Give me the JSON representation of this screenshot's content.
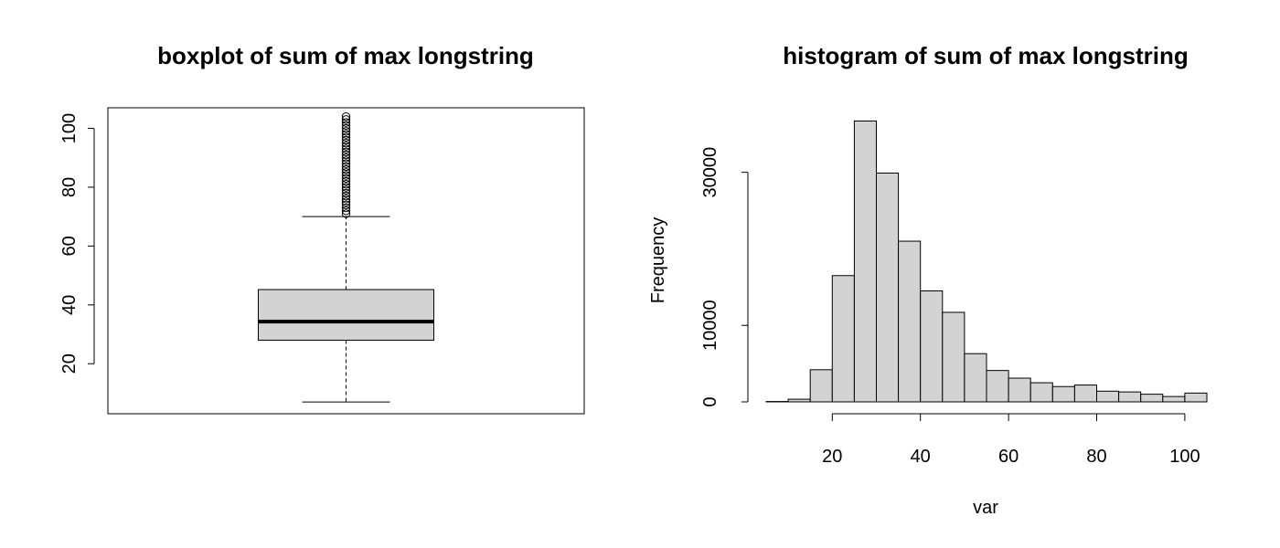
{
  "chart_data": [
    {
      "type": "box",
      "title": "boxplot of sum of max longstring",
      "ylim": [
        3,
        107
      ],
      "yticks": [
        20,
        40,
        60,
        80,
        100
      ],
      "box": {
        "whisker_low": 7,
        "q1": 28,
        "median": 34.3,
        "q3": 45.2,
        "whisker_high": 70
      },
      "outliers": [
        71,
        72,
        73,
        74,
        75,
        76,
        77,
        78,
        79,
        80,
        81,
        82,
        83,
        84,
        85,
        86,
        87,
        88,
        89,
        90,
        91,
        92,
        93,
        94,
        95,
        96,
        97,
        98,
        99,
        100,
        101,
        102,
        103,
        104
      ],
      "colors": {
        "box_fill": "#d3d3d3",
        "stroke": "#000000"
      }
    },
    {
      "type": "histogram",
      "title": "histogram of sum of max longstring",
      "xlabel": "var",
      "ylabel": "Frequency",
      "xlim": [
        5,
        105
      ],
      "ylim": [
        0,
        37000
      ],
      "xticks": [
        20,
        40,
        60,
        80,
        100
      ],
      "yticks": [
        0,
        10000,
        30000
      ],
      "bins": [
        {
          "x0": 5,
          "x1": 10,
          "count": 50
        },
        {
          "x0": 10,
          "x1": 15,
          "count": 350
        },
        {
          "x0": 15,
          "x1": 20,
          "count": 4200
        },
        {
          "x0": 20,
          "x1": 25,
          "count": 16500
        },
        {
          "x0": 25,
          "x1": 30,
          "count": 36700
        },
        {
          "x0": 30,
          "x1": 35,
          "count": 29900
        },
        {
          "x0": 35,
          "x1": 40,
          "count": 21000
        },
        {
          "x0": 40,
          "x1": 45,
          "count": 14500
        },
        {
          "x0": 45,
          "x1": 50,
          "count": 11700
        },
        {
          "x0": 50,
          "x1": 55,
          "count": 6300
        },
        {
          "x0": 55,
          "x1": 60,
          "count": 4100
        },
        {
          "x0": 60,
          "x1": 65,
          "count": 3100
        },
        {
          "x0": 65,
          "x1": 70,
          "count": 2500
        },
        {
          "x0": 70,
          "x1": 75,
          "count": 2000
        },
        {
          "x0": 75,
          "x1": 80,
          "count": 2200
        },
        {
          "x0": 80,
          "x1": 85,
          "count": 1400
        },
        {
          "x0": 85,
          "x1": 90,
          "count": 1300
        },
        {
          "x0": 90,
          "x1": 95,
          "count": 1000
        },
        {
          "x0": 95,
          "x1": 100,
          "count": 700
        },
        {
          "x0": 100,
          "x1": 105,
          "count": 1150
        }
      ],
      "colors": {
        "bar_fill": "#d3d3d3",
        "stroke": "#000000"
      }
    }
  ]
}
